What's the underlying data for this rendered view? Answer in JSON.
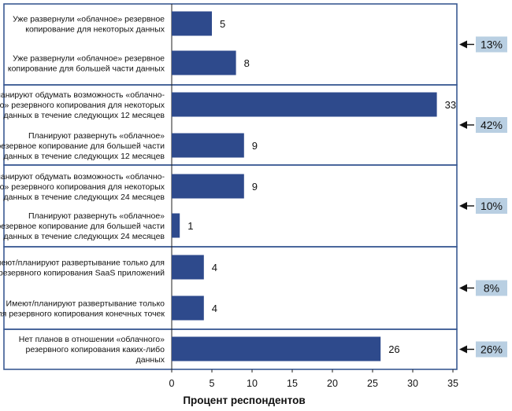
{
  "chart_data": {
    "type": "bar",
    "orientation": "horizontal",
    "xlabel": "Процент респондентов",
    "xlim": [
      0,
      35
    ],
    "xticks": [
      0,
      5,
      10,
      15,
      20,
      25,
      30,
      35
    ],
    "bar_color": "#2e4a8c",
    "box_color": "#3a5a93",
    "badge_color": "#b9cfe2",
    "groups": [
      {
        "percent": "13%",
        "items": [
          {
            "label": [
              "Уже развернули «облачное» резервное",
              "копирование для некоторых данных"
            ],
            "value": 5
          },
          {
            "label": [
              "Уже развернули «облачное» резервное",
              "копирование для большей части данных"
            ],
            "value": 8
          }
        ]
      },
      {
        "percent": "42%",
        "items": [
          {
            "label": [
              "Планируют обдумать возможность «облачно-",
              "го» резервного копирования для некоторых",
              "данных в течение следующих 12 месяцев"
            ],
            "value": 33
          },
          {
            "label": [
              "Планируют развернуть «облачное»",
              "резервное копирование для большей части",
              "данных в течение следующих 12 месяцев"
            ],
            "value": 9
          }
        ]
      },
      {
        "percent": "10%",
        "items": [
          {
            "label": [
              "Планируют обдумать возможность «облачно-",
              "го» резервного копирования для некоторых",
              "данных в течение следующих 24 месяцев"
            ],
            "value": 9
          },
          {
            "label": [
              "Планируют развернуть «облачное»",
              "резервное копирование для большей части",
              "данных в течение следующих 24 месяцев"
            ],
            "value": 1
          }
        ]
      },
      {
        "percent": "8%",
        "items": [
          {
            "label": [
              "Имеют/планируют развертывание только для",
              "резервного копирования SaaS приложений"
            ],
            "value": 4
          },
          {
            "label": [
              "Имеют/планируют развертывание только",
              "для резервного копирования конечных точек"
            ],
            "value": 4
          }
        ]
      },
      {
        "percent": "26%",
        "items": [
          {
            "label": [
              "Нет планов в отношении «облачного»",
              "резервного копирования каких-либо",
              "данных"
            ],
            "value": 26
          }
        ]
      }
    ]
  }
}
